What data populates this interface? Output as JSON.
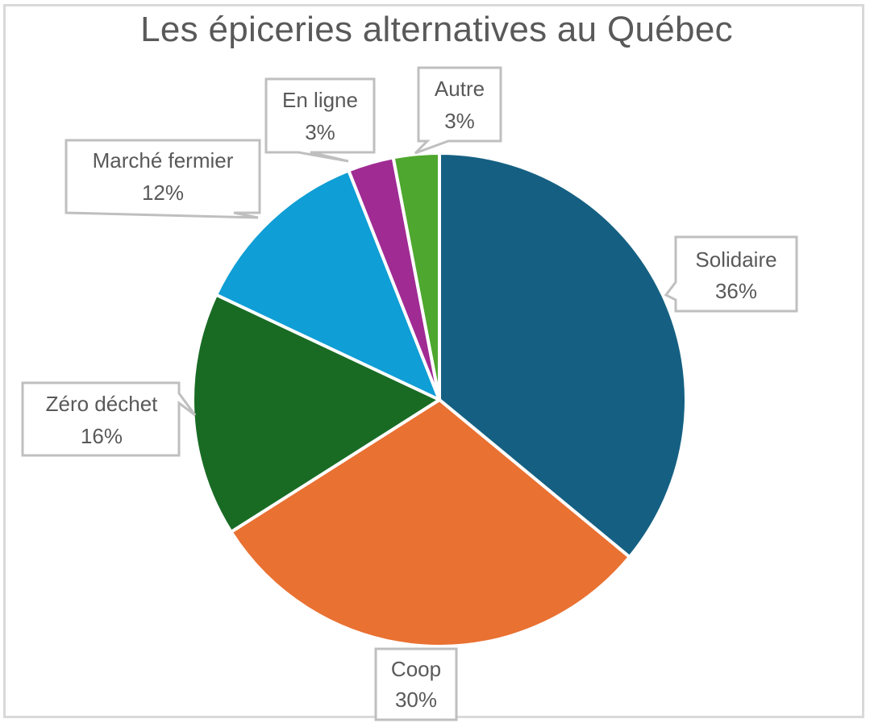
{
  "chart_data": {
    "type": "pie",
    "title": "Les épiceries alternatives au Québec",
    "categories": [
      "Solidaire",
      "Coop",
      "Zéro déchet",
      "Marché fermier",
      "En ligne",
      "Autre"
    ],
    "values": [
      36,
      30,
      16,
      12,
      3,
      3
    ],
    "value_format": "percent",
    "colors": [
      "#156082",
      "#E97132",
      "#196B24",
      "#0F9ED5",
      "#A02B93",
      "#4EA72E"
    ],
    "start_angle_deg": 0,
    "direction": "clockwise",
    "legend": "none",
    "data_labels": [
      {
        "category": "Solidaire",
        "text": "Solidaire",
        "pct": "36%"
      },
      {
        "category": "Coop",
        "text": "Coop",
        "pct": "30%"
      },
      {
        "category": "Zéro déchet",
        "text": "Zéro déchet",
        "pct": "16%"
      },
      {
        "category": "Marché fermier",
        "text": "Marché fermier",
        "pct": "12%"
      },
      {
        "category": "En ligne",
        "text": "En ligne",
        "pct": "3%"
      },
      {
        "category": "Autre",
        "text": "Autre",
        "pct": "3%"
      }
    ]
  }
}
